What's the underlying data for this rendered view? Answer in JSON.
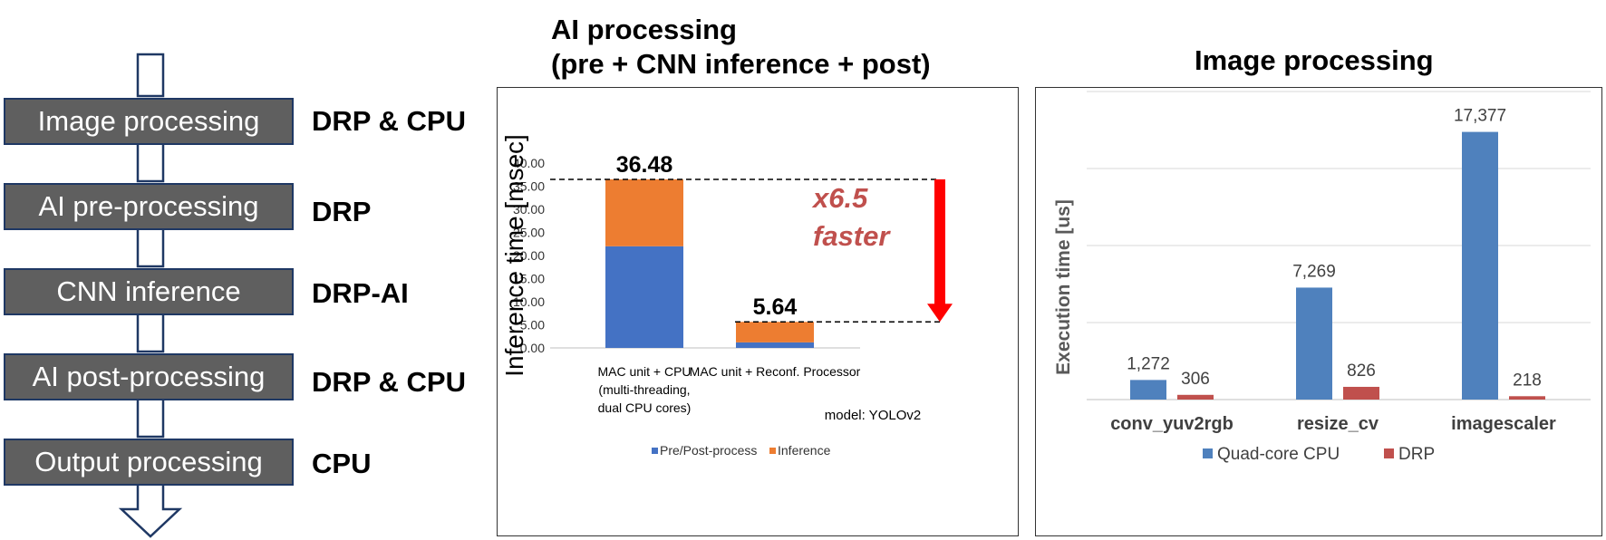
{
  "flow": {
    "stages": [
      {
        "label": "Image processing",
        "engine": "DRP & CPU"
      },
      {
        "label": "AI pre-processing",
        "engine": "DRP"
      },
      {
        "label": "CNN inference",
        "engine": "DRP-AI"
      },
      {
        "label": "AI post-processing",
        "engine": "DRP & CPU"
      },
      {
        "label": "Output processing",
        "engine": "CPU"
      }
    ]
  },
  "ai_panel": {
    "title_line1": "AI processing",
    "title_line2": "(pre + CNN inference + post)"
  },
  "img_panel": {
    "title": "Image processing"
  },
  "chart_data": [
    {
      "type": "bar",
      "stacked": true,
      "title": "AI processing (pre + CNN inference + post)",
      "ylabel": "Inference time [msec]",
      "ylim": [
        0,
        40
      ],
      "yticks": [
        "0.00",
        "5.00",
        "10.00",
        "15.00",
        "20.00",
        "25.00",
        "30.00",
        "35.00",
        "40.00"
      ],
      "categories": [
        [
          "MAC unit + CPU",
          "(multi-threading,",
          "dual CPU cores)"
        ],
        [
          "MAC unit + Reconf. Processor"
        ]
      ],
      "series": [
        {
          "name": "Pre/Post-process",
          "color": "#4472c4",
          "values": [
            22.0,
            1.2
          ]
        },
        {
          "name": "Inference",
          "color": "#ed7d31",
          "values": [
            14.48,
            4.44
          ]
        }
      ],
      "totals": [
        "36.48",
        "5.64"
      ],
      "annotation_line1": "x6.5",
      "annotation_line2": "faster",
      "annotation_color": "#c0504d",
      "arrow_color": "#ff0000",
      "note": "model: YOLOv2",
      "legend_position": "bottom",
      "grid": false
    },
    {
      "type": "bar",
      "title": "Image processing",
      "ylabel": "Execution time [us]",
      "ylim": [
        0,
        20000
      ],
      "grid": true,
      "categories": [
        "conv_yuv2rgb",
        "resize_cv",
        "imagescaler"
      ],
      "series": [
        {
          "name": "Quad-core CPU",
          "color": "#4f81bd",
          "values": [
            1272,
            7269,
            17377
          ],
          "labels": [
            "1,272",
            "7,269",
            "17,377"
          ]
        },
        {
          "name": "DRP",
          "color": "#c0504d",
          "values": [
            306,
            826,
            218
          ],
          "labels": [
            "306",
            "826",
            "218"
          ]
        }
      ],
      "legend_position": "bottom"
    }
  ]
}
